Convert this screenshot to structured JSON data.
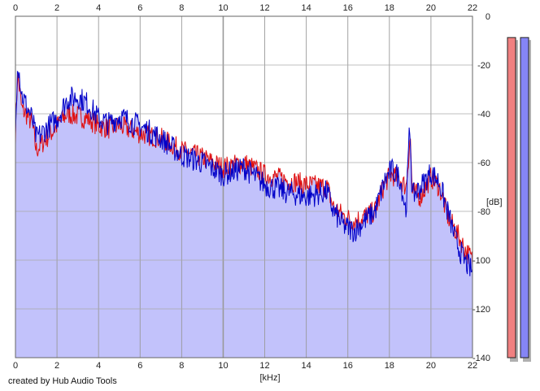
{
  "credit": "created by Hub Audio Tools",
  "chart_data": {
    "type": "area",
    "xlabel": "[kHz]",
    "ylabel": "[dB]",
    "xlim": [
      0,
      22
    ],
    "ylim": [
      -140,
      0
    ],
    "x_ticks": [
      "0",
      "2",
      "4",
      "6",
      "8",
      "10",
      "12",
      "14",
      "16",
      "18",
      "20",
      "22"
    ],
    "y_ticks": [
      "0",
      "-20",
      "-40",
      "-60",
      "-80",
      "-100",
      "-120",
      "-140"
    ],
    "grid": true,
    "fill_color": "#c2c2fb",
    "x": [
      0,
      0.1,
      0.2,
      0.3,
      0.5,
      0.8,
      1.0,
      1.5,
      2.0,
      2.5,
      3.0,
      3.5,
      4.0,
      4.5,
      5.0,
      6.0,
      7.0,
      8.0,
      9.0,
      10.0,
      11.0,
      12.0,
      13.0,
      14.0,
      15.0,
      15.3,
      15.8,
      16.3,
      16.8,
      17.3,
      17.8,
      18.1,
      18.5,
      18.8,
      18.95,
      19.0,
      19.1,
      19.5,
      20.0,
      20.4,
      20.8,
      21.2,
      21.6,
      22.0
    ],
    "series": [
      {
        "color": "#e01010",
        "values": [
          -48,
          -24,
          -30,
          -38,
          -40,
          -44,
          -55,
          -50,
          -45,
          -40,
          -41,
          -42,
          -45,
          -46,
          -45,
          -48,
          -50,
          -55,
          -58,
          -62,
          -60,
          -65,
          -67,
          -69,
          -70,
          -78,
          -82,
          -84,
          -82,
          -80,
          -68,
          -65,
          -67,
          -70,
          -55,
          -48,
          -72,
          -74,
          -66,
          -70,
          -82,
          -88,
          -95,
          -100
        ]
      },
      {
        "color": "#0000c8",
        "values": [
          -50,
          -17,
          -24,
          -32,
          -36,
          -42,
          -50,
          -46,
          -42,
          -34,
          -33,
          -36,
          -42,
          -44,
          -41,
          -45,
          -50,
          -57,
          -60,
          -65,
          -62,
          -69,
          -72,
          -74,
          -72,
          -80,
          -86,
          -88,
          -84,
          -80,
          -67,
          -63,
          -66,
          -80,
          -50,
          -46,
          -74,
          -70,
          -64,
          -68,
          -80,
          -92,
          -100,
          -105
        ]
      }
    ]
  },
  "meters": [
    {
      "color": "#f08080",
      "level": 0.97
    },
    {
      "color": "#8585f5",
      "level": 0.97
    }
  ]
}
